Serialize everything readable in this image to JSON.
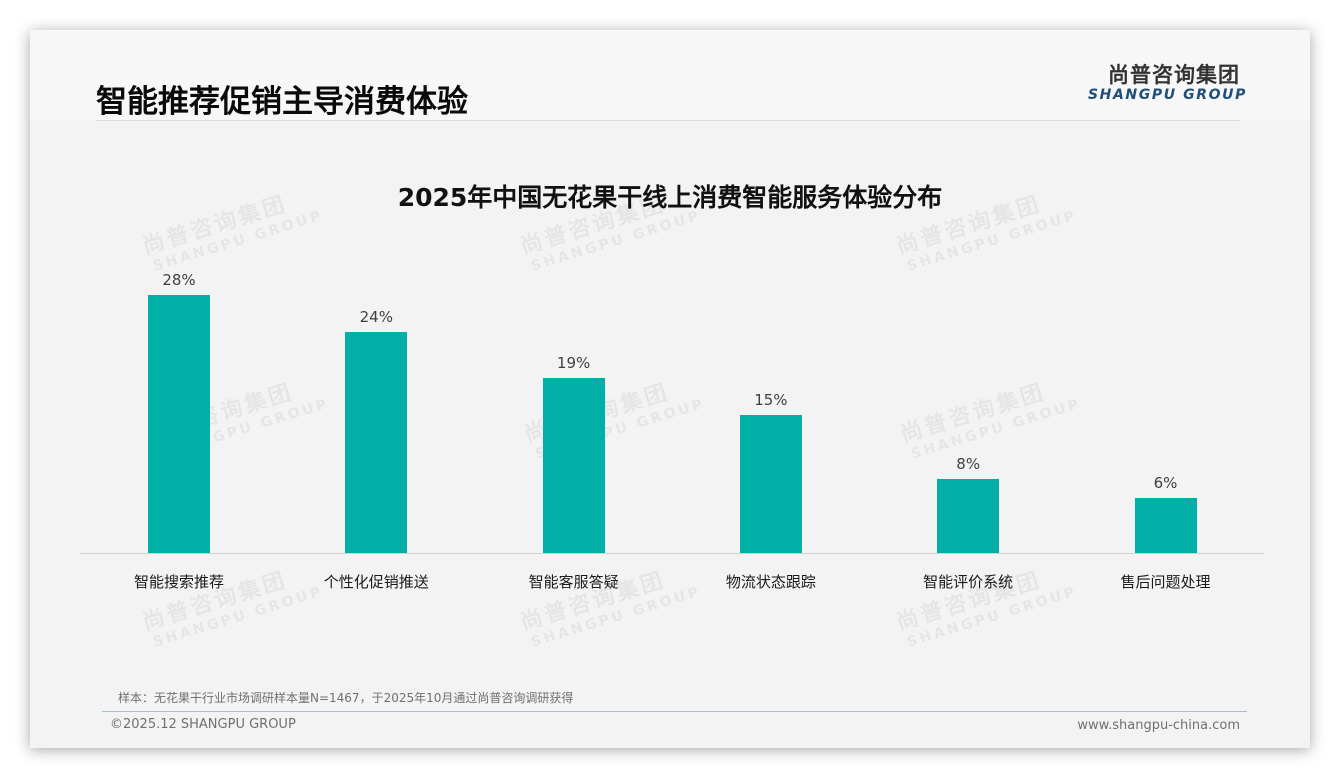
{
  "slide": {
    "title": "智能推荐促销主导消费体验",
    "logo": {
      "cn": "尚普咨询集团",
      "en": "SHANGPU GROUP"
    },
    "watermark": {
      "cn": "尚普咨询集团",
      "en": "SHANGPU GROUP"
    },
    "note": "样本：无花果干行业市场调研样本量N=1467，于2025年10月通过尚普咨询调研获得",
    "footer": {
      "copyright": "©2025.12 SHANGPU GROUP",
      "website": "www.shangpu-china.com"
    }
  },
  "colors": {
    "bar": "#00b0a8",
    "title": "#0a0a0a",
    "logo_en": "#1f4e79"
  },
  "chart_data": {
    "type": "bar",
    "title": "2025年中国无花果干线上消费智能服务体验分布",
    "categories": [
      "智能搜索推荐",
      "个性化促销推送",
      "智能客服答疑",
      "物流状态跟踪",
      "智能评价系统",
      "售后问题处理"
    ],
    "values": [
      28,
      24,
      19,
      15,
      8,
      6
    ],
    "value_labels": [
      "28%",
      "24%",
      "19%",
      "15%",
      "8%",
      "6%"
    ],
    "unit": "%",
    "xlabel": "",
    "ylabel": "",
    "ylim": [
      0,
      30
    ],
    "grid": false,
    "legend": null
  }
}
